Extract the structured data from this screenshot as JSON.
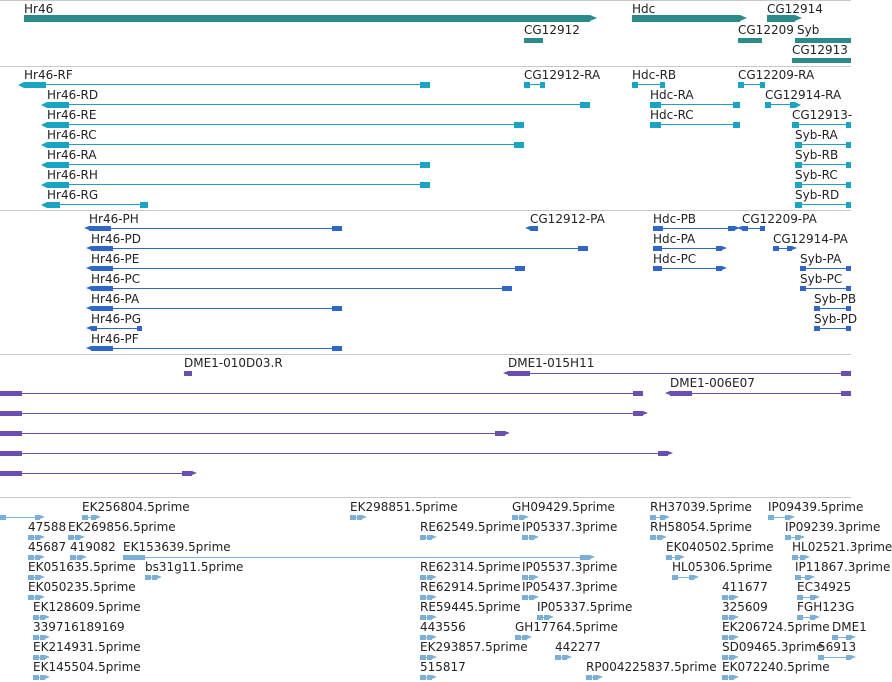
{
  "colors": {
    "gene": "#2a8b8b",
    "transcript": "#1aa3c2",
    "protein": "#2f67c9",
    "clone": "#6a4fb0",
    "est": "#7ab0d8",
    "divider": "#c8c8c8"
  },
  "tracks": [
    {
      "name": "gene-track",
      "color_key": "gene",
      "features": [
        {
          "label": "Hr46"
        },
        {
          "label": "CG12912"
        },
        {
          "label": "Hdc"
        },
        {
          "label": "CG12914"
        },
        {
          "label": "CG12209"
        },
        {
          "label": "Syb"
        },
        {
          "label": "CG12913"
        }
      ]
    },
    {
      "name": "transcript-track",
      "color_key": "transcript",
      "features": [
        {
          "label": "Hr46-RF"
        },
        {
          "label": "Hr46-RD"
        },
        {
          "label": "Hr46-RE"
        },
        {
          "label": "Hr46-RC"
        },
        {
          "label": "Hr46-RA"
        },
        {
          "label": "Hr46-RH"
        },
        {
          "label": "Hr46-RG"
        },
        {
          "label": "CG12912-RA"
        },
        {
          "label": "Hdc-RB"
        },
        {
          "label": "Hdc-RA"
        },
        {
          "label": "Hdc-RC"
        },
        {
          "label": "CG12209-RA"
        },
        {
          "label": "CG12914-RA"
        },
        {
          "label": "CG12913-"
        },
        {
          "label": "Syb-RA"
        },
        {
          "label": "Syb-RB"
        },
        {
          "label": "Syb-RC"
        },
        {
          "label": "Syb-RD"
        }
      ]
    },
    {
      "name": "protein-track",
      "color_key": "protein",
      "features": [
        {
          "label": "Hr46-PH"
        },
        {
          "label": "Hr46-PD"
        },
        {
          "label": "Hr46-PE"
        },
        {
          "label": "Hr46-PC"
        },
        {
          "label": "Hr46-PA"
        },
        {
          "label": "Hr46-PG"
        },
        {
          "label": "Hr46-PF"
        },
        {
          "label": "CG12912-PA"
        },
        {
          "label": "Hdc-PB"
        },
        {
          "label": "Hdc-PA"
        },
        {
          "label": "Hdc-PC"
        },
        {
          "label": "CG12209-PA"
        },
        {
          "label": "CG12914-PA"
        },
        {
          "label": "Syb-PA"
        },
        {
          "label": "Syb-PC"
        },
        {
          "label": "Syb-PB"
        },
        {
          "label": "Syb-PD"
        }
      ]
    },
    {
      "name": "clone-track",
      "color_key": "clone",
      "features": [
        {
          "label": "DME1-010D03.R"
        },
        {
          "label": "DME1-015H11"
        },
        {
          "label": "DME1-006E07"
        },
        {
          "label": ""
        },
        {
          "label": ""
        },
        {
          "label": ""
        },
        {
          "label": ""
        },
        {
          "label": ""
        }
      ]
    },
    {
      "name": "est-track",
      "color_key": "est",
      "features": [
        {
          "label": ""
        },
        {
          "label": "EK256804.5prime"
        },
        {
          "label": "EK298851.5prime"
        },
        {
          "label": "GH09429.5prime"
        },
        {
          "label": "RH37039.5prime"
        },
        {
          "label": "IP09439.5prime"
        },
        {
          "label": "47588"
        },
        {
          "label": "EK269856.5prime"
        },
        {
          "label": "RE62549.5prime"
        },
        {
          "label": "IP05337.3prime"
        },
        {
          "label": "RH58054.5prime"
        },
        {
          "label": "IP09239.3prime"
        },
        {
          "label": "45687"
        },
        {
          "label": "419082"
        },
        {
          "label": "EK153639.5prime"
        },
        {
          "label": "EK040502.5prime"
        },
        {
          "label": "HL02521.3prime"
        },
        {
          "label": "EK051635.5prime"
        },
        {
          "label": "bs31g11.5prime"
        },
        {
          "label": "RE62314.5prime"
        },
        {
          "label": "IP05537.3prime"
        },
        {
          "label": "HL05306.5prime"
        },
        {
          "label": "IP11867.3prime"
        },
        {
          "label": "EK050235.5prime"
        },
        {
          "label": "RE62914.5prime"
        },
        {
          "label": "IP05437.3prime"
        },
        {
          "label": "411677"
        },
        {
          "label": "EC34925"
        },
        {
          "label": "EK128609.5prime"
        },
        {
          "label": "RE59445.5prime"
        },
        {
          "label": "IP05337.5prime"
        },
        {
          "label": "325609"
        },
        {
          "label": "FGH123G"
        },
        {
          "label": "339716189169"
        },
        {
          "label": "443556"
        },
        {
          "label": "GH17764.5prime"
        },
        {
          "label": "EK206724.5prime"
        },
        {
          "label": "DME1"
        },
        {
          "label": "EK214931.5prime"
        },
        {
          "label": "EK293857.5prime"
        },
        {
          "label": "442277"
        },
        {
          "label": "SD09465.3prime"
        },
        {
          "label": "56913"
        },
        {
          "label": "EK145504.5prime"
        },
        {
          "label": "515817"
        },
        {
          "label": "RP004225837.5prime"
        },
        {
          "label": "EK072240.5prime"
        }
      ]
    }
  ]
}
